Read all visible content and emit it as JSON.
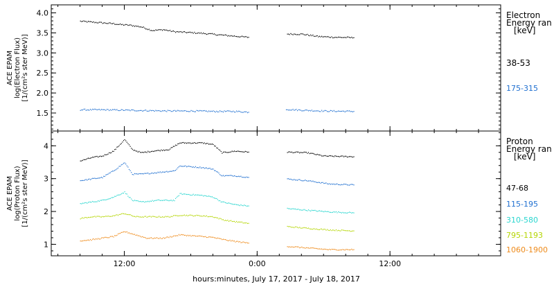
{
  "chart_data": [
    {
      "type": "scatter",
      "instrument_label": "ACE EPAM",
      "ylabel": "log(Electron Flux)",
      "yunits": "[1/(cm²s ster MeV)]",
      "ylim": [
        1.05,
        4.2
      ],
      "yticks": [
        "1.5",
        "2.0",
        "2.5",
        "3.0",
        "3.5",
        "4.0"
      ],
      "legend_title": "Electron\nEnergy ran\n[keV]",
      "legend_title_lines": [
        "Electron",
        "Energy ran",
        "[keV]"
      ],
      "series": [
        {
          "name": "38-53",
          "color": "#000000",
          "segments": [
            [
              [
                -16,
                3.8
              ],
              [
                -14.5,
                3.77
              ],
              [
                -13,
                3.74
              ],
              [
                -12.5,
                3.72
              ],
              [
                -11.5,
                3.7
              ],
              [
                -10.5,
                3.66
              ],
              [
                -9.5,
                3.57
              ],
              [
                -8.5,
                3.59
              ],
              [
                -7.5,
                3.54
              ],
              [
                -5,
                3.5
              ],
              [
                -3,
                3.45
              ],
              [
                -0.8,
                3.4
              ]
            ],
            [
              [
                2.7,
                3.48
              ],
              [
                4,
                3.48
              ],
              [
                5.5,
                3.42
              ],
              [
                7,
                3.4
              ],
              [
                8.7,
                3.39
              ]
            ]
          ]
        },
        {
          "name": "175-315",
          "color": "#1f6fd0",
          "segments": [
            [
              [
                -16,
                1.59
              ],
              [
                -14,
                1.59
              ],
              [
                -12,
                1.58
              ],
              [
                -10,
                1.57
              ],
              [
                -8,
                1.56
              ],
              [
                -6,
                1.56
              ],
              [
                -4,
                1.55
              ],
              [
                -2,
                1.55
              ],
              [
                -0.8,
                1.53
              ]
            ],
            [
              [
                2.6,
                1.6
              ],
              [
                4,
                1.58
              ],
              [
                6,
                1.56
              ],
              [
                8.7,
                1.55
              ]
            ]
          ]
        }
      ]
    },
    {
      "type": "scatter",
      "instrument_label": "ACE EPAM",
      "ylabel": "log(Proton Flux)",
      "yunits": "[1/(cm²s ster MeV)]",
      "ylim": [
        0.65,
        4.45
      ],
      "yticks": [
        "1",
        "2",
        "3",
        "4"
      ],
      "legend_title": "Proton\nEnergy ran\n[keV]",
      "legend_title_lines": [
        "Proton",
        "Energy ran",
        "[keV]"
      ],
      "series": [
        {
          "name": "47-68",
          "color": "#000000",
          "segments": [
            [
              [
                -16,
                3.55
              ],
              [
                -15,
                3.65
              ],
              [
                -14,
                3.7
              ],
              [
                -13,
                3.85
              ],
              [
                -12,
                4.2
              ],
              [
                -11.3,
                3.9
              ],
              [
                -10.5,
                3.8
              ],
              [
                -9.5,
                3.85
              ],
              [
                -8,
                3.9
              ],
              [
                -7,
                4.1
              ],
              [
                -6,
                4.1
              ],
              [
                -5,
                4.1
              ],
              [
                -4,
                4.05
              ],
              [
                -3.2,
                3.8
              ],
              [
                -2,
                3.85
              ],
              [
                -0.8,
                3.82
              ]
            ],
            [
              [
                2.7,
                3.82
              ],
              [
                4.5,
                3.8
              ],
              [
                6,
                3.7
              ],
              [
                8.7,
                3.68
              ]
            ]
          ]
        },
        {
          "name": "115-195",
          "color": "#1f6fd0",
          "segments": [
            [
              [
                -16,
                2.95
              ],
              [
                -15,
                3.0
              ],
              [
                -14,
                3.05
              ],
              [
                -13,
                3.25
              ],
              [
                -12,
                3.5
              ],
              [
                -11.3,
                3.15
              ],
              [
                -10.5,
                3.15
              ],
              [
                -9,
                3.2
              ],
              [
                -7.5,
                3.25
              ],
              [
                -7,
                3.4
              ],
              [
                -5,
                3.35
              ],
              [
                -4,
                3.3
              ],
              [
                -3.2,
                3.1
              ],
              [
                -2,
                3.1
              ],
              [
                -0.8,
                3.05
              ]
            ],
            [
              [
                2.7,
                3.0
              ],
              [
                4.5,
                2.95
              ],
              [
                6.5,
                2.85
              ],
              [
                8.7,
                2.82
              ]
            ]
          ]
        },
        {
          "name": "310-580",
          "color": "#2ad6cf",
          "segments": [
            [
              [
                -16,
                2.25
              ],
              [
                -15,
                2.3
              ],
              [
                -14,
                2.35
              ],
              [
                -13,
                2.45
              ],
              [
                -12,
                2.6
              ],
              [
                -11.3,
                2.35
              ],
              [
                -10.5,
                2.3
              ],
              [
                -9,
                2.35
              ],
              [
                -7.5,
                2.35
              ],
              [
                -7,
                2.55
              ],
              [
                -5,
                2.5
              ],
              [
                -4,
                2.45
              ],
              [
                -3.2,
                2.3
              ],
              [
                -2,
                2.22
              ],
              [
                -0.8,
                2.18
              ]
            ],
            [
              [
                2.7,
                2.1
              ],
              [
                4.5,
                2.05
              ],
              [
                6.5,
                2.0
              ],
              [
                8.7,
                1.97
              ]
            ]
          ]
        },
        {
          "name": "795-1193",
          "color": "#b4d500",
          "segments": [
            [
              [
                -16,
                1.8
              ],
              [
                -15,
                1.85
              ],
              [
                -14,
                1.85
              ],
              [
                -13,
                1.88
              ],
              [
                -12,
                1.95
              ],
              [
                -11,
                1.85
              ],
              [
                -10,
                1.85
              ],
              [
                -8,
                1.85
              ],
              [
                -7,
                1.9
              ],
              [
                -5,
                1.88
              ],
              [
                -4,
                1.85
              ],
              [
                -3,
                1.75
              ],
              [
                -2,
                1.7
              ],
              [
                -0.8,
                1.65
              ]
            ],
            [
              [
                2.7,
                1.55
              ],
              [
                4.5,
                1.5
              ],
              [
                6.5,
                1.45
              ],
              [
                8.7,
                1.42
              ]
            ]
          ]
        },
        {
          "name": "1060-1900",
          "color": "#ee8a1a",
          "segments": [
            [
              [
                -16,
                1.12
              ],
              [
                -15,
                1.15
              ],
              [
                -14,
                1.2
              ],
              [
                -13,
                1.25
              ],
              [
                -12,
                1.4
              ],
              [
                -11,
                1.3
              ],
              [
                -10,
                1.2
              ],
              [
                -8.5,
                1.2
              ],
              [
                -7,
                1.3
              ],
              [
                -5,
                1.25
              ],
              [
                -4,
                1.22
              ],
              [
                -3,
                1.15
              ],
              [
                -2,
                1.1
              ],
              [
                -0.8,
                1.05
              ]
            ],
            [
              [
                2.7,
                0.95
              ],
              [
                4.5,
                0.9
              ],
              [
                6.5,
                0.85
              ],
              [
                8.7,
                0.85
              ]
            ]
          ]
        }
      ]
    }
  ],
  "xaxis": {
    "xlabel": "hours:minutes, July 17, 2017 - July 18, 2017",
    "xlim": [
      -18.6,
      22
    ],
    "ticks": [
      {
        "v": -12,
        "label": "12:00"
      },
      {
        "v": 0,
        "label": "0:00"
      },
      {
        "v": 12,
        "label": "12:00"
      }
    ]
  }
}
